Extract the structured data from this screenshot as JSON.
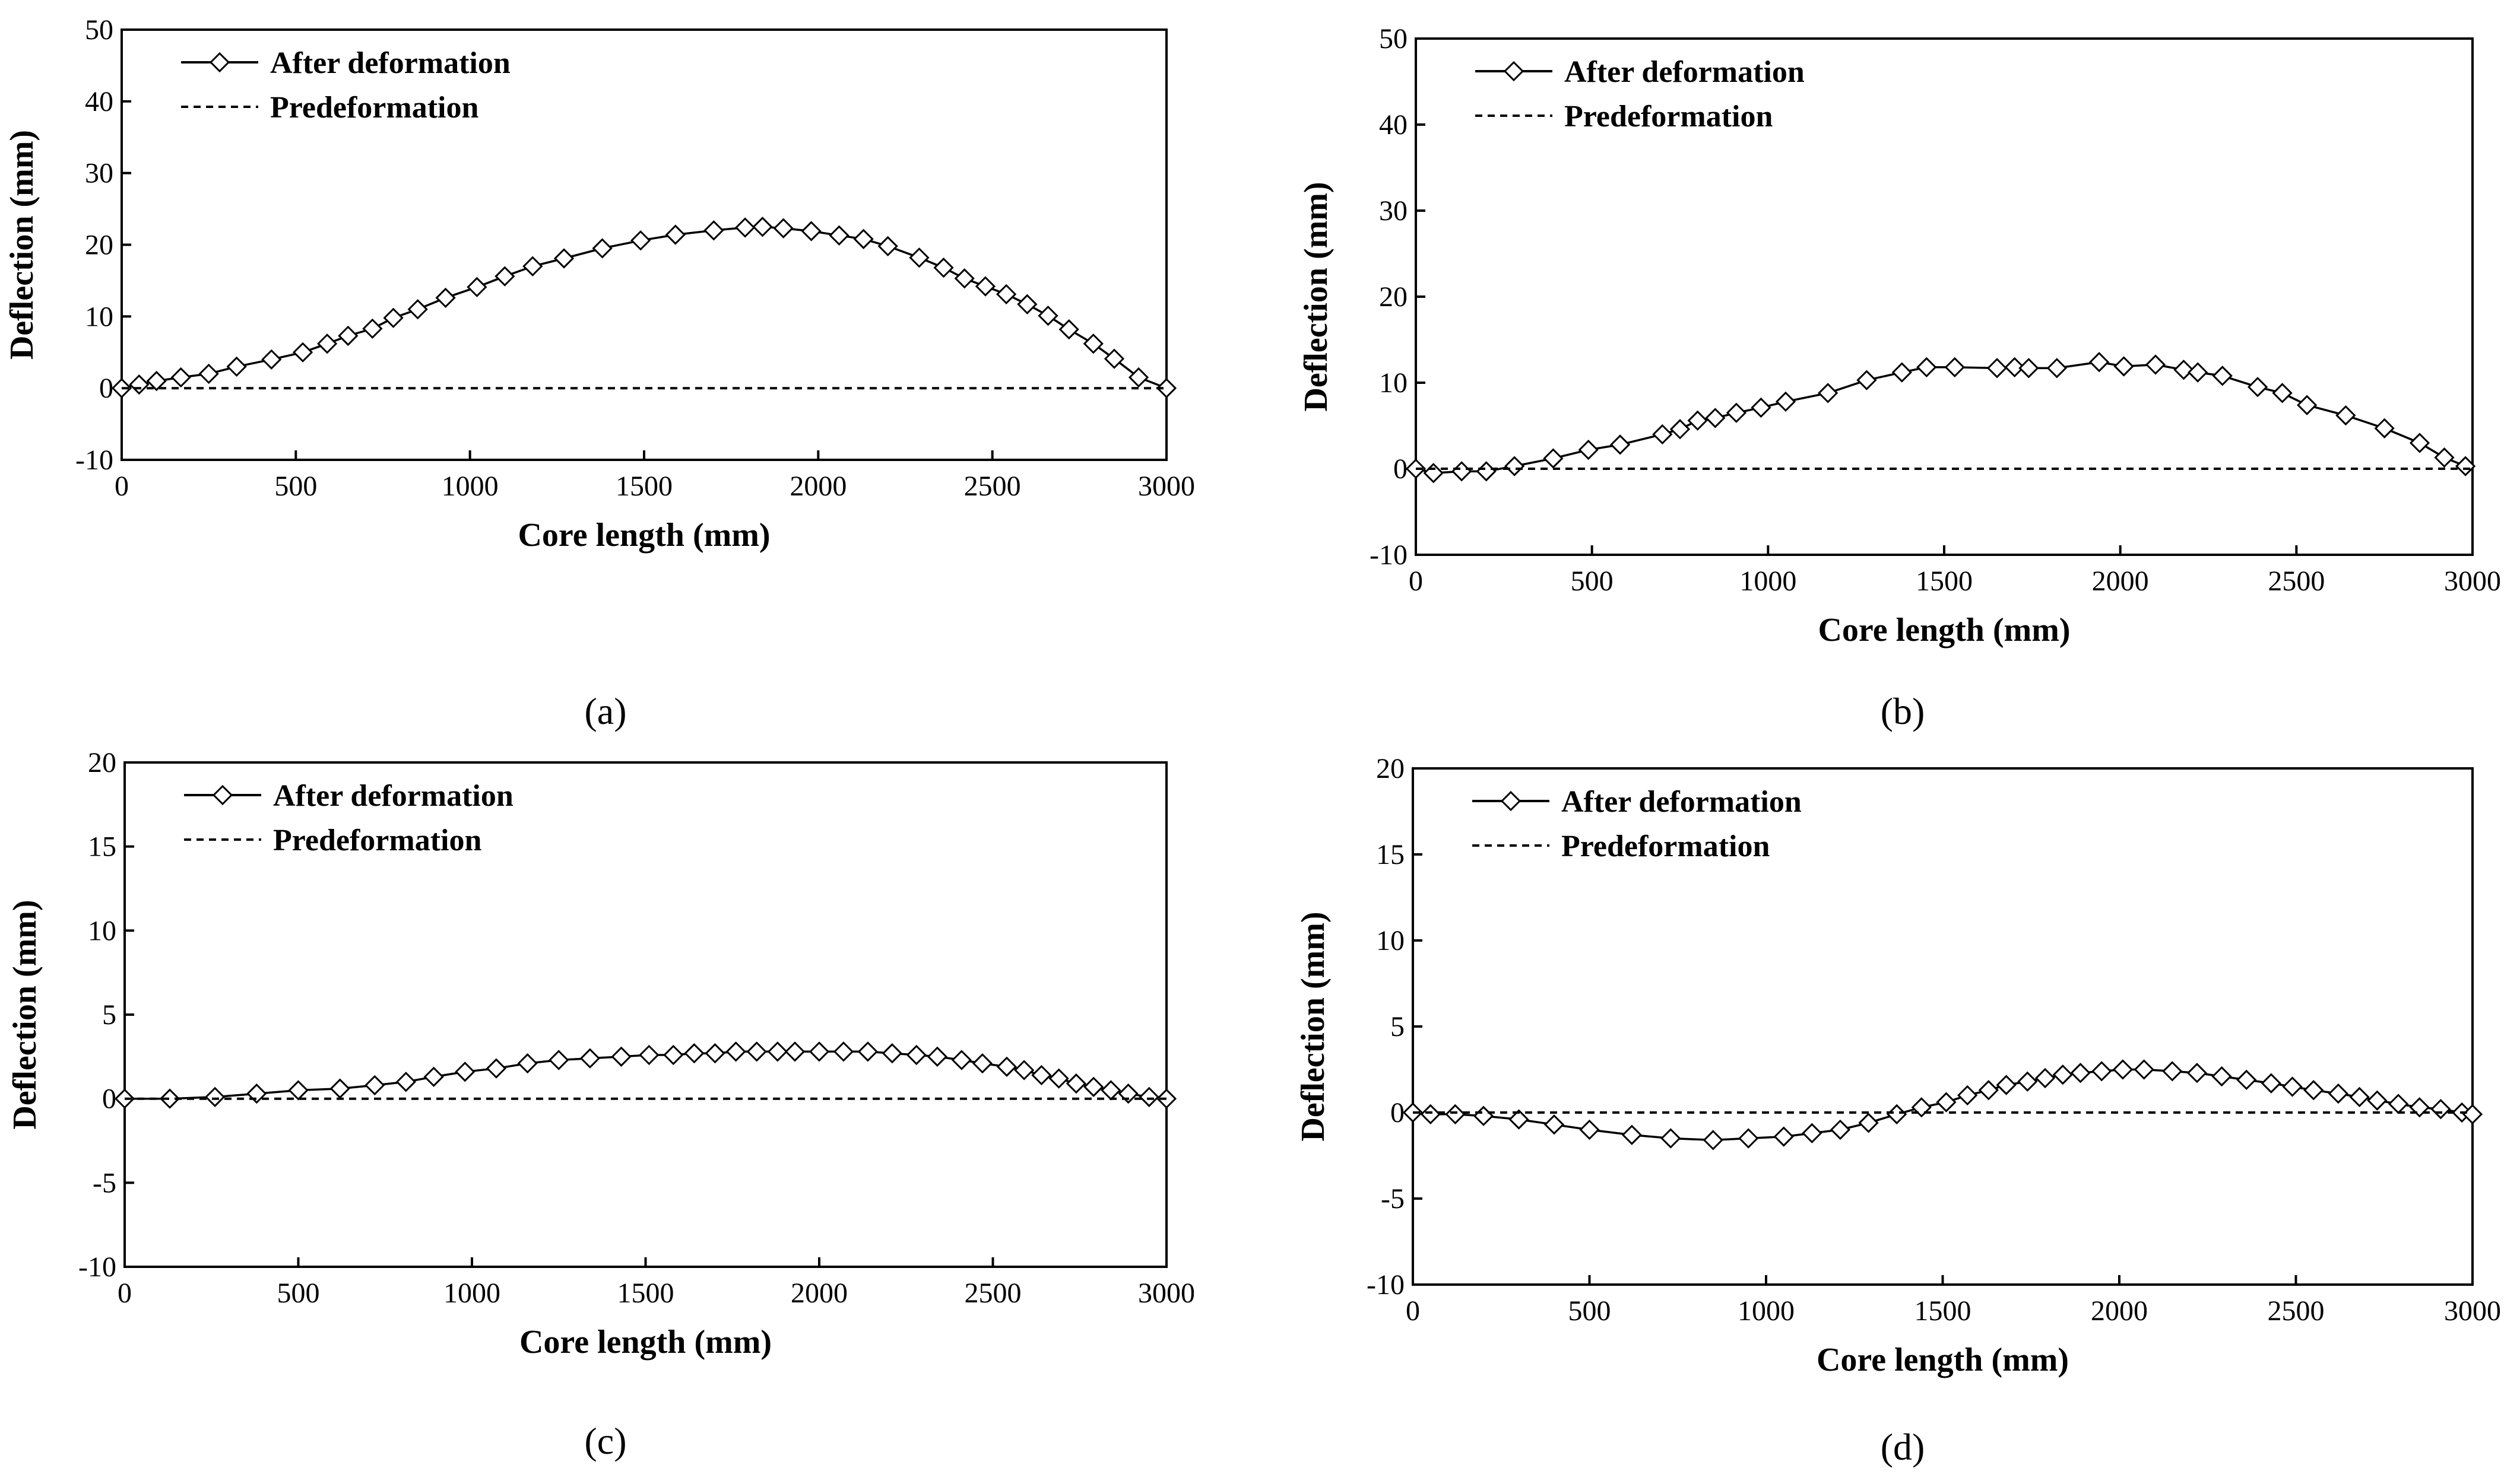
{
  "figure": {
    "panel_labels": [
      "(a)",
      "(b)",
      "(c)",
      "(d)"
    ]
  },
  "colors": {
    "line": "#000000",
    "marker_fill": "#ffffff",
    "background": "#ffffff"
  },
  "chart_data": [
    {
      "panel": "(a)",
      "type": "line",
      "xlabel": "Core length (mm)",
      "ylabel": "Deflection (mm)",
      "xlim": [
        0,
        3000
      ],
      "ylim": [
        -10,
        50
      ],
      "xticks": [
        0,
        500,
        1000,
        1500,
        2000,
        2500,
        3000
      ],
      "yticks": [
        -10,
        0,
        10,
        20,
        30,
        40,
        50
      ],
      "legend": [
        "After deformation",
        "Predeformation"
      ],
      "series": [
        {
          "name": "After deformation",
          "style": "solid-diamond",
          "x": [
            0,
            50,
            100,
            170,
            250,
            330,
            430,
            520,
            590,
            650,
            720,
            780,
            850,
            930,
            1020,
            1100,
            1180,
            1270,
            1380,
            1490,
            1590,
            1700,
            1790,
            1840,
            1900,
            1980,
            2060,
            2130,
            2200,
            2290,
            2360,
            2420,
            2480,
            2540,
            2600,
            2660,
            2720,
            2790,
            2850,
            2920,
            3000
          ],
          "y": [
            0,
            0.5,
            1,
            1.5,
            2,
            3,
            4,
            5,
            6.2,
            7.3,
            8.3,
            9.8,
            11,
            12.6,
            14.1,
            15.6,
            17,
            18.1,
            19.5,
            20.6,
            21.4,
            22,
            22.4,
            22.5,
            22.3,
            21.9,
            21.3,
            20.8,
            19.8,
            18.2,
            16.8,
            15.3,
            14.2,
            13.1,
            11.7,
            10.1,
            8.2,
            6.2,
            4.1,
            1.5,
            0
          ]
        },
        {
          "name": "Predeformation",
          "style": "dashed",
          "x": [
            0,
            3000
          ],
          "y": [
            0,
            0
          ]
        }
      ]
    },
    {
      "panel": "(b)",
      "type": "line",
      "xlabel": "Core length (mm)",
      "ylabel": "Deflection (mm)",
      "xlim": [
        0,
        3000
      ],
      "ylim": [
        -10,
        50
      ],
      "xticks": [
        0,
        500,
        1000,
        1500,
        2000,
        2500,
        3000
      ],
      "yticks": [
        -10,
        0,
        10,
        20,
        30,
        40,
        50
      ],
      "legend": [
        "After deformation",
        "Predeformation"
      ],
      "series": [
        {
          "name": "After deformation",
          "style": "solid-diamond",
          "x": [
            0,
            50,
            130,
            200,
            280,
            390,
            490,
            580,
            700,
            750,
            800,
            850,
            910,
            980,
            1050,
            1170,
            1280,
            1380,
            1450,
            1530,
            1650,
            1700,
            1740,
            1820,
            1940,
            2010,
            2100,
            2180,
            2220,
            2290,
            2390,
            2460,
            2530,
            2640,
            2750,
            2850,
            2920,
            2980
          ],
          "y": [
            0,
            -0.5,
            -0.3,
            -0.3,
            0.3,
            1.2,
            2.2,
            2.8,
            4,
            4.6,
            5.6,
            5.9,
            6.5,
            7.1,
            7.8,
            8.8,
            10.3,
            11.2,
            11.8,
            11.8,
            11.7,
            11.8,
            11.7,
            11.7,
            12.4,
            11.9,
            12.1,
            11.5,
            11.2,
            10.8,
            9.5,
            8.8,
            7.4,
            6.2,
            4.7,
            3,
            1.3,
            0.3
          ]
        },
        {
          "name": "Predeformation",
          "style": "dashed",
          "x": [
            0,
            3000
          ],
          "y": [
            0,
            0
          ]
        }
      ]
    },
    {
      "panel": "(c)",
      "type": "line",
      "xlabel": "Core length (mm)",
      "ylabel": "Deflection (mm)",
      "xlim": [
        0,
        3000
      ],
      "ylim": [
        -10,
        20
      ],
      "xticks": [
        0,
        500,
        1000,
        1500,
        2000,
        2500,
        3000
      ],
      "yticks": [
        -10,
        -5,
        0,
        5,
        10,
        15,
        20
      ],
      "legend": [
        "After deformation",
        "Predeformation"
      ],
      "series": [
        {
          "name": "After deformation",
          "style": "solid-diamond",
          "x": [
            0,
            130,
            260,
            380,
            500,
            620,
            720,
            810,
            890,
            980,
            1070,
            1160,
            1250,
            1340,
            1430,
            1510,
            1580,
            1640,
            1700,
            1760,
            1820,
            1880,
            1930,
            2000,
            2070,
            2140,
            2210,
            2280,
            2340,
            2410,
            2470,
            2540,
            2590,
            2640,
            2690,
            2740,
            2790,
            2840,
            2890,
            2950,
            3000
          ],
          "y": [
            0,
            0,
            0.1,
            0.3,
            0.5,
            0.6,
            0.8,
            1,
            1.3,
            1.6,
            1.8,
            2.1,
            2.3,
            2.4,
            2.5,
            2.6,
            2.6,
            2.7,
            2.7,
            2.8,
            2.8,
            2.8,
            2.8,
            2.8,
            2.8,
            2.8,
            2.7,
            2.6,
            2.5,
            2.3,
            2.1,
            1.9,
            1.7,
            1.4,
            1.2,
            0.9,
            0.7,
            0.5,
            0.3,
            0.1,
            0
          ]
        },
        {
          "name": "Predeformation",
          "style": "dashed",
          "x": [
            0,
            3000
          ],
          "y": [
            0,
            0
          ]
        }
      ]
    },
    {
      "panel": "(d)",
      "type": "line",
      "xlabel": "Core length (mm)",
      "ylabel": "Deflection (mm)",
      "xlim": [
        0,
        3000
      ],
      "ylim": [
        -10,
        20
      ],
      "xticks": [
        0,
        500,
        1000,
        1500,
        2000,
        2500,
        3000
      ],
      "yticks": [
        -10,
        -5,
        0,
        5,
        10,
        15,
        20
      ],
      "legend": [
        "After deformation",
        "Predeformation"
      ],
      "series": [
        {
          "name": "After deformation",
          "style": "solid-diamond",
          "x": [
            0,
            50,
            120,
            200,
            300,
            400,
            500,
            620,
            730,
            850,
            950,
            1050,
            1130,
            1210,
            1290,
            1370,
            1440,
            1510,
            1570,
            1630,
            1680,
            1740,
            1790,
            1840,
            1890,
            1950,
            2010,
            2070,
            2150,
            2220,
            2290,
            2360,
            2430,
            2490,
            2550,
            2620,
            2680,
            2730,
            2790,
            2850,
            2910,
            2970,
            3000
          ],
          "y": [
            0,
            -0.1,
            -0.1,
            -0.2,
            -0.4,
            -0.7,
            -1,
            -1.3,
            -1.5,
            -1.6,
            -1.5,
            -1.4,
            -1.2,
            -1,
            -0.6,
            -0.1,
            0.3,
            0.6,
            1,
            1.3,
            1.6,
            1.8,
            2,
            2.2,
            2.3,
            2.4,
            2.5,
            2.5,
            2.4,
            2.3,
            2.1,
            1.9,
            1.7,
            1.5,
            1.3,
            1.1,
            0.9,
            0.7,
            0.5,
            0.3,
            0.2,
            0,
            -0.1
          ]
        },
        {
          "name": "Predeformation",
          "style": "dashed",
          "x": [
            0,
            3000
          ],
          "y": [
            0,
            0
          ]
        }
      ]
    }
  ]
}
